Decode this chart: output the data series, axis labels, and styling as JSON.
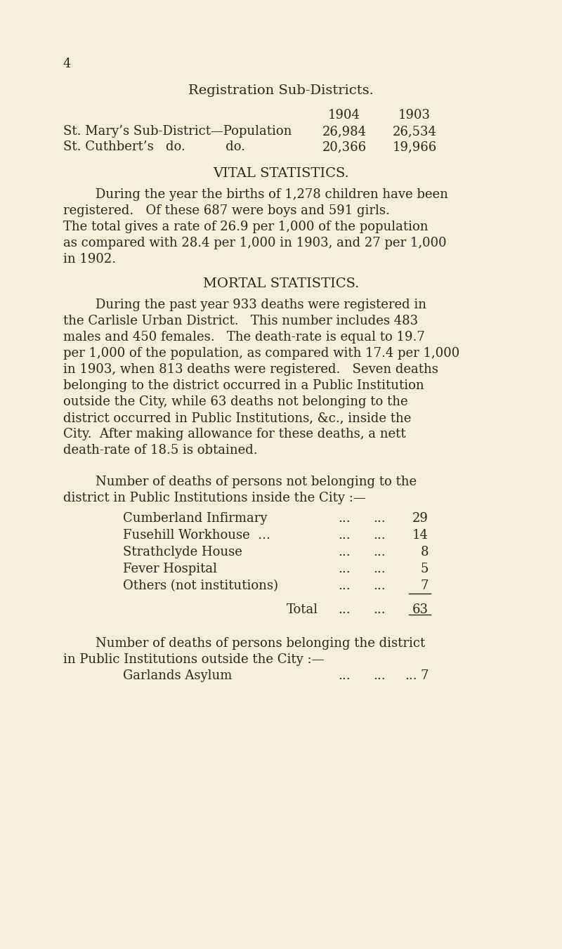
{
  "bg_color": "#f5eed8",
  "text_color": "#2a2520",
  "page_number": "4",
  "title": "Registration Sub-Districts.",
  "col_headers": [
    "1904",
    "1903"
  ],
  "row1_label": "St. Mary’s Sub-District—Population",
  "row1_vals": [
    "26,984",
    "26,534"
  ],
  "row2_label": "St. Cuthbert’s   do.          do.",
  "row2_vals": [
    "20,366",
    "19,966"
  ],
  "section1_title": "VITAL STATISTICS.",
  "section1_lines": [
    "        During the year the births of 1,278 children have been",
    "registered.   Of these 687 were boys and 591 girls.",
    "The total gives a rate of 26.9 per 1,000 of the population",
    "as compared with 28.4 per 1,000 in 1903, and 27 per 1,000",
    "in 1902."
  ],
  "section2_title": "MORTAL STATISTICS.",
  "section2_lines": [
    "        During the past year 933 deaths were registered in",
    "the Carlisle Urban District.   This number includes 483",
    "males and 450 females.   The death-rate is equal to 19.7",
    "per 1,000 of the population, as compared with 17.4 per 1,000",
    "in 1903, when 813 deaths were registered.   Seven deaths",
    "belonging to the district occurred in a Public Institution",
    "outside the City, while 63 deaths not belonging to the",
    "district occurred in Public Institutions, &c., inside the",
    "City.  After making allowance for these deaths, a nett",
    "death-rate of 18.5 is obtained."
  ],
  "table2_intro_lines": [
    "        Number of deaths of persons not belonging to the",
    "district in Public Institutions inside the City :—"
  ],
  "institutions": [
    [
      "Cumberland Infirmary",
      "...",
      "...",
      "29"
    ],
    [
      "Fusehill Workhouse  ...",
      "...",
      "...",
      "14"
    ],
    [
      "Strathclyde House",
      "...",
      "...",
      "8"
    ],
    [
      "Fever Hospital",
      "...",
      "...",
      "5"
    ],
    [
      "Others (not institutions)",
      "...",
      "...",
      "7"
    ]
  ],
  "total_label": "Total",
  "total_dots1": "...",
  "total_dots2": "...",
  "total_value": "63",
  "table3_intro_lines": [
    "        Number of deaths of persons belonging the district",
    "in Public Institutions outside the City :—"
  ],
  "garlands": [
    "Garlands Asylum",
    "...",
    "...",
    "...",
    "7"
  ]
}
